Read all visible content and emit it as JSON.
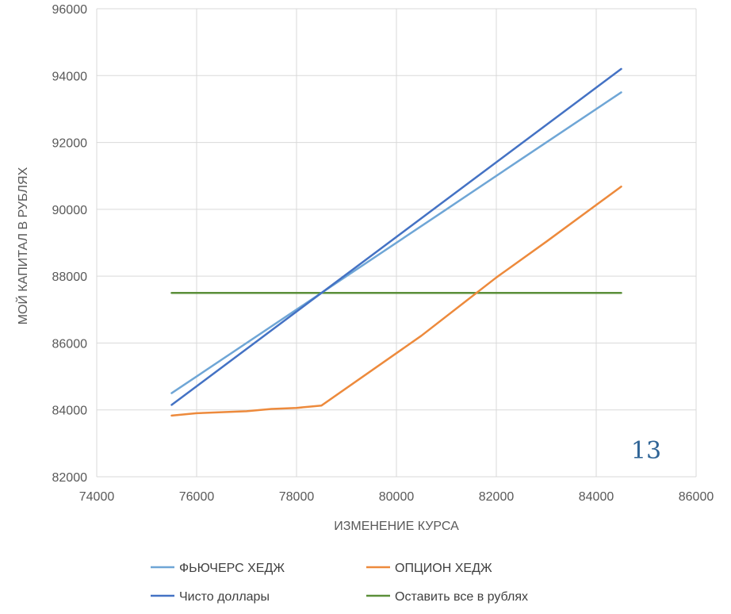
{
  "page_number": "13",
  "chart_data": {
    "type": "line",
    "title": "",
    "xlabel": "ИЗМЕНЕНИЕ КУРСА",
    "ylabel": "МОЙ КАПИТАЛ В РУБЛЯХ",
    "xlim": [
      74000,
      86000
    ],
    "ylim": [
      82000,
      96000
    ],
    "x_ticks": [
      "74000",
      "76000",
      "78000",
      "80000",
      "82000",
      "84000",
      "86000"
    ],
    "y_ticks": [
      "82000",
      "84000",
      "86000",
      "88000",
      "90000",
      "92000",
      "94000",
      "96000"
    ],
    "grid": true,
    "legend_position": "bottom",
    "series": [
      {
        "name": "ФЬЮЧЕРС ХЕДЖ",
        "color": "#6fa6d6",
        "points": [
          [
            75500,
            84500
          ],
          [
            78500,
            87500
          ],
          [
            81000,
            90000
          ],
          [
            82500,
            91500
          ],
          [
            84500,
            93500
          ]
        ]
      },
      {
        "name": "ОПЦИОН ХЕДЖ",
        "color": "#ed8a3c",
        "points": [
          [
            75500,
            83830
          ],
          [
            76000,
            83900
          ],
          [
            77000,
            83960
          ],
          [
            77500,
            84030
          ],
          [
            78000,
            84060
          ],
          [
            78500,
            84130
          ],
          [
            80500,
            86220
          ],
          [
            82000,
            87960
          ],
          [
            83000,
            89030
          ],
          [
            84500,
            90680
          ]
        ]
      },
      {
        "name": "Чисто доллары",
        "color": "#4472c4",
        "points": [
          [
            75500,
            84150
          ],
          [
            78500,
            87500
          ],
          [
            84500,
            94200
          ]
        ]
      },
      {
        "name": "Оставить все в рублях",
        "color": "#5b8f3a",
        "points": [
          [
            75500,
            87500
          ],
          [
            84500,
            87500
          ]
        ]
      }
    ]
  }
}
